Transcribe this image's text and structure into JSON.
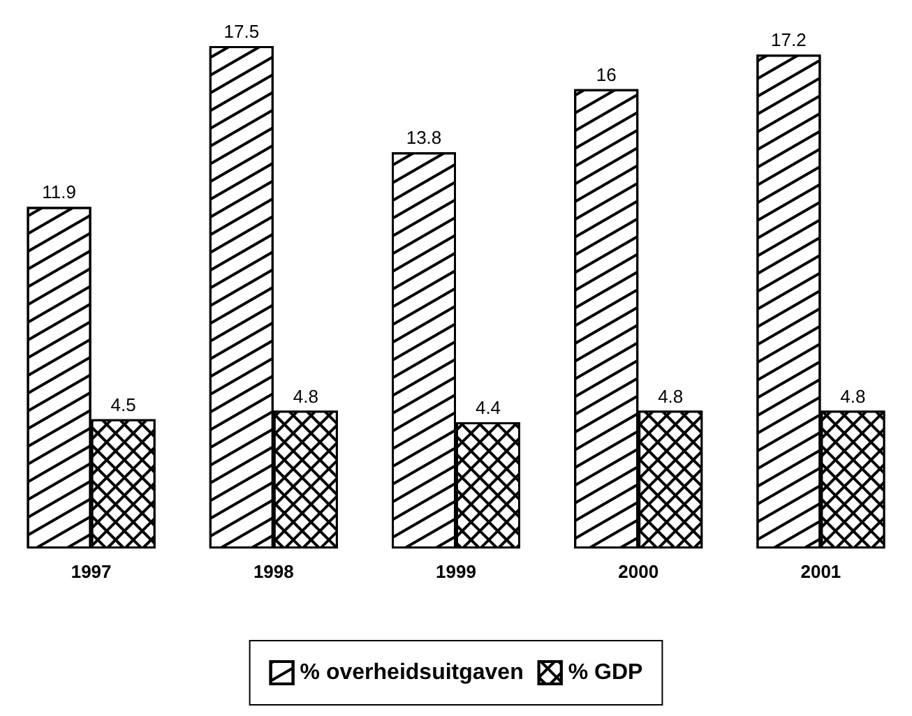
{
  "chart_data": {
    "type": "bar",
    "categories": [
      "1997",
      "1998",
      "1999",
      "2000",
      "2001"
    ],
    "series": [
      {
        "name": "% overheidsuitgaven",
        "color": "#ffffff",
        "values": [
          11.9,
          17.5,
          13.8,
          16,
          17.2
        ]
      },
      {
        "name": "% GDP",
        "color": "#000000",
        "values": [
          4.5,
          4.8,
          4.4,
          4.8,
          4.8
        ]
      }
    ],
    "tick_labels": "x",
    "data_labels": true,
    "legend": "bottom",
    "grid": false
  }
}
